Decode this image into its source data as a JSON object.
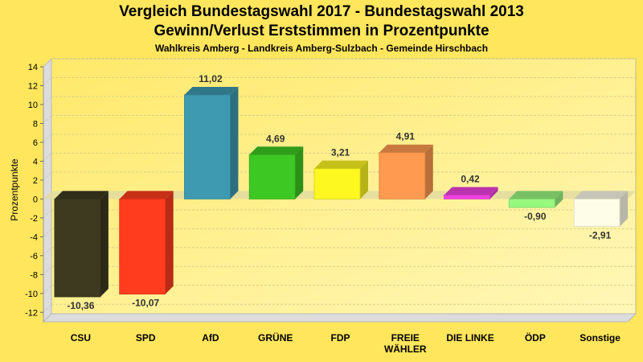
{
  "chart_data": {
    "type": "bar",
    "title": "Vergleich Bundestagswahl 2017 - Bundestagswahl 2013",
    "subtitle": "Gewinn/Verlust Erststimmen in Prozentpunkte",
    "subtitle2": "Wahlkreis Amberg - Landkreis Amberg-Sulzbach - Gemeinde Hirschbach",
    "xlabel": "",
    "ylabel": "Prozentpunkte",
    "ylim": [
      -13,
      14
    ],
    "yticks": [
      14,
      12,
      10,
      8,
      6,
      4,
      2,
      0,
      -2,
      -4,
      -6,
      -8,
      -10,
      -12
    ],
    "grid": true,
    "legend": "none",
    "categories": [
      "CSU",
      "SPD",
      "AfD",
      "GRÜNE",
      "FDP",
      "FREIE WÄHLER",
      "DIE LINKE",
      "ÖDP",
      "Sonstige"
    ],
    "category_lines": [
      [
        "CSU"
      ],
      [
        "SPD"
      ],
      [
        "AfD"
      ],
      [
        "GRÜNE"
      ],
      [
        "FDP"
      ],
      [
        "FREIE",
        "WÄHLER"
      ],
      [
        "DIE LINKE"
      ],
      [
        "ÖDP"
      ],
      [
        "Sonstige"
      ]
    ],
    "values": [
      -10.36,
      -10.07,
      11.02,
      4.69,
      3.21,
      4.91,
      0.42,
      -0.9,
      -2.91
    ],
    "value_labels": [
      "-10,36",
      "-10,07",
      "11,02",
      "4,69",
      "3,21",
      "4,91",
      "0,42",
      "-0,90",
      "-2,91"
    ],
    "colors": [
      "#3d3a20",
      "#ff3c1e",
      "#3d9ab0",
      "#3dc823",
      "#fcf820",
      "#ff9a50",
      "#f040e0",
      "#98f880",
      "#fefde8"
    ]
  }
}
